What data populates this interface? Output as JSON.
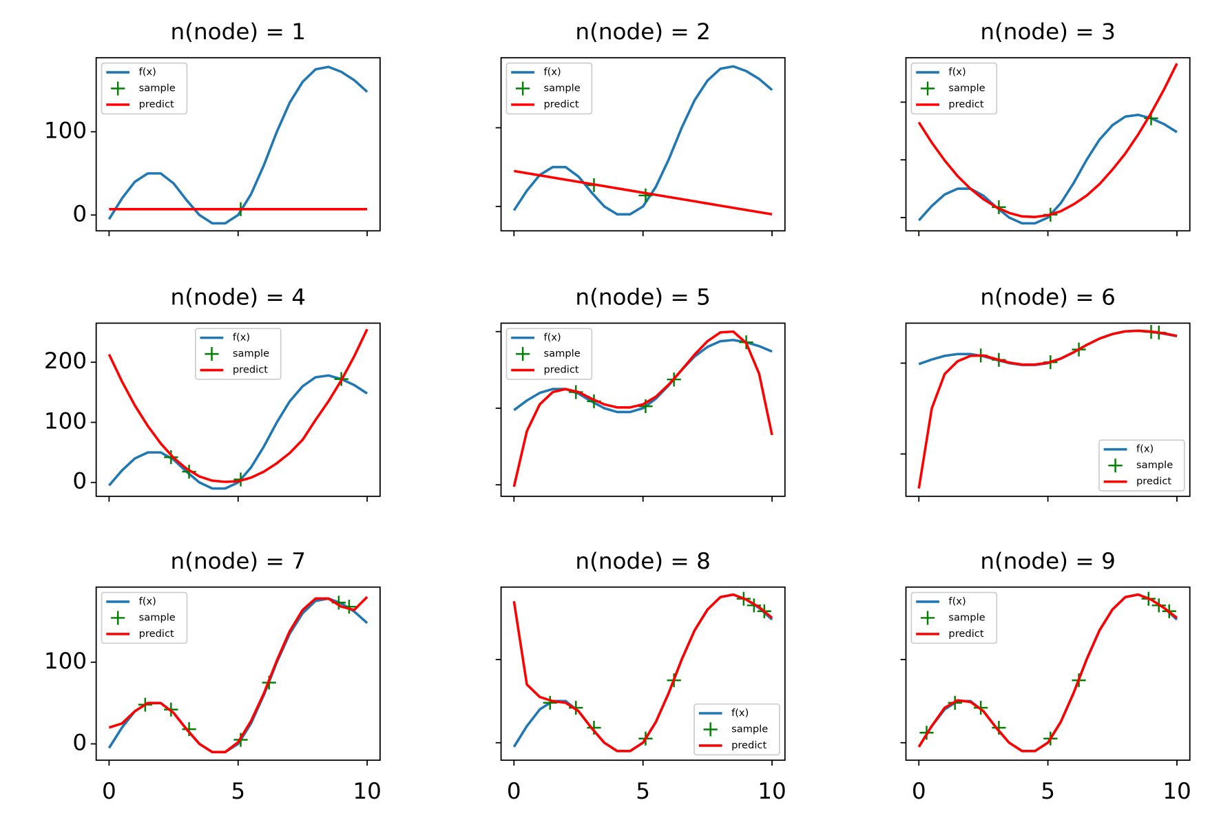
{
  "chart_data": [
    {
      "type": "line",
      "title": "n(node) = 1",
      "x": [
        0,
        0.5,
        1,
        1.5,
        2,
        2.5,
        3,
        3.5,
        4,
        4.5,
        5,
        5.5,
        6,
        6.5,
        7,
        7.5,
        8,
        8.5,
        9,
        9.5,
        10
      ],
      "xlim": [
        -0.5,
        10.5
      ],
      "xticks": [
        0,
        5,
        10
      ],
      "ylim": [
        -19,
        189
      ],
      "yticks": [
        0,
        100
      ],
      "show_xtick_labels": false,
      "show_ytick_labels": true,
      "legend": "upper left",
      "series": [
        {
          "name": "f(x)",
          "color": "#1f77b4",
          "values": [
            -5,
            20,
            40,
            50,
            50,
            38,
            18,
            0,
            -10,
            -10,
            0,
            25,
            60,
            100,
            135,
            160,
            175,
            178,
            172,
            162,
            148
          ]
        },
        {
          "name": "sample",
          "color": "#008000",
          "marker": "+",
          "x": [
            5.1
          ],
          "values": [
            7
          ]
        },
        {
          "name": "predict",
          "color": "#ff0000",
          "values": [
            7,
            7,
            7,
            7,
            7,
            7,
            7,
            7,
            7,
            7,
            7,
            7,
            7,
            7,
            7,
            7,
            7,
            7,
            7,
            7,
            7
          ]
        }
      ]
    },
    {
      "type": "line",
      "title": "n(node) = 2",
      "x": [
        0,
        0.5,
        1,
        1.5,
        2,
        2.5,
        3,
        3.5,
        4,
        4.5,
        5,
        5.5,
        6,
        6.5,
        7,
        7.5,
        8,
        8.5,
        9,
        9.5,
        10
      ],
      "xlim": [
        -0.5,
        10.5
      ],
      "xticks": [
        0,
        5,
        10
      ],
      "ylim": [
        -31,
        189
      ],
      "yticks": [
        0,
        100
      ],
      "show_xtick_labels": false,
      "show_ytick_labels": false,
      "legend": "upper left",
      "series": [
        {
          "name": "f(x)",
          "color": "#1f77b4",
          "values": [
            -5,
            20,
            40,
            50,
            50,
            38,
            18,
            0,
            -10,
            -10,
            0,
            25,
            60,
            100,
            135,
            160,
            175,
            178,
            172,
            162,
            148
          ]
        },
        {
          "name": "sample",
          "color": "#008000",
          "marker": "+",
          "x": [
            3.1,
            5.1
          ],
          "values": [
            27,
            14
          ]
        },
        {
          "name": "predict",
          "color": "#ff0000",
          "values": [
            45,
            42.25,
            39.5,
            36.75,
            34,
            31.25,
            28.5,
            25.75,
            23,
            20.25,
            17.5,
            14.75,
            12,
            9.25,
            6.5,
            3.75,
            1,
            -1.75,
            -4.5,
            -7.25,
            -10
          ]
        }
      ]
    },
    {
      "type": "line",
      "title": "n(node) = 3",
      "x": [
        0,
        0.5,
        1,
        1.5,
        2,
        2.5,
        3,
        3.5,
        4,
        4.5,
        5,
        5.5,
        6,
        6.5,
        7,
        7.5,
        8,
        8.5,
        9,
        9.5,
        10
      ],
      "xlim": [
        -0.5,
        10.5
      ],
      "xticks": [
        0,
        5,
        10
      ],
      "ylim": [
        -23,
        277
      ],
      "yticks": [
        0,
        100,
        200
      ],
      "show_xtick_labels": false,
      "show_ytick_labels": false,
      "legend": "upper left",
      "series": [
        {
          "name": "f(x)",
          "color": "#1f77b4",
          "values": [
            -5,
            20,
            40,
            50,
            50,
            38,
            18,
            0,
            -10,
            -10,
            0,
            25,
            60,
            100,
            135,
            160,
            175,
            178,
            172,
            162,
            148
          ]
        },
        {
          "name": "sample",
          "color": "#008000",
          "marker": "+",
          "x": [
            3.1,
            5.1,
            9
          ],
          "values": [
            18,
            5,
            172
          ]
        },
        {
          "name": "predict",
          "color": "#ff0000",
          "values": [
            165,
            130,
            99,
            72,
            50,
            32,
            18,
            8,
            2,
            1,
            4,
            11,
            23,
            38,
            58,
            83,
            111,
            144,
            181,
            222,
            267
          ]
        }
      ]
    },
    {
      "type": "line",
      "title": "n(node) = 4",
      "x": [
        0,
        0.5,
        1,
        1.5,
        2,
        2.5,
        3,
        3.5,
        4,
        4.5,
        5,
        5.5,
        6,
        6.5,
        7,
        7.5,
        8,
        8.5,
        9,
        9.5,
        10
      ],
      "xlim": [
        -0.5,
        10.5
      ],
      "xticks": [
        0,
        5,
        10
      ],
      "ylim": [
        -23,
        265
      ],
      "yticks": [
        0,
        100,
        200
      ],
      "show_xtick_labels": false,
      "show_ytick_labels": true,
      "legend": "upper center",
      "series": [
        {
          "name": "f(x)",
          "color": "#1f77b4",
          "values": [
            -5,
            20,
            40,
            50,
            50,
            38,
            18,
            0,
            -10,
            -10,
            0,
            25,
            60,
            100,
            135,
            160,
            175,
            178,
            172,
            162,
            148
          ]
        },
        {
          "name": "sample",
          "color": "#008000",
          "marker": "+",
          "x": [
            2.4,
            3.1,
            5.1,
            9
          ],
          "values": [
            42,
            18,
            5,
            172
          ]
        },
        {
          "name": "predict",
          "color": "#ff0000",
          "values": [
            213,
            168,
            128,
            94,
            65,
            41,
            23,
            10,
            3,
            1,
            2,
            8,
            18,
            32,
            49,
            71,
            104,
            135,
            170,
            210,
            255
          ]
        }
      ]
    },
    {
      "type": "line",
      "title": "n(node) = 5",
      "x": [
        0,
        0.5,
        1,
        1.5,
        2,
        2.5,
        3,
        3.5,
        4,
        4.5,
        5,
        5.5,
        6,
        6.5,
        7,
        7.5,
        8,
        8.5,
        9,
        9.5,
        10
      ],
      "xlim": [
        -0.5,
        10.5
      ],
      "xticks": [
        0,
        5,
        10
      ],
      "ylim": [
        -230,
        222
      ],
      "yticks": [
        -200,
        0,
        200
      ],
      "show_xtick_labels": false,
      "show_ytick_labels": false,
      "legend": "upper left",
      "series": [
        {
          "name": "f(x)",
          "color": "#1f77b4",
          "values": [
            -5,
            20,
            40,
            50,
            50,
            38,
            18,
            0,
            -10,
            -10,
            0,
            25,
            60,
            100,
            135,
            160,
            175,
            178,
            172,
            162,
            148
          ]
        },
        {
          "name": "sample",
          "color": "#008000",
          "marker": "+",
          "x": [
            2.4,
            3.1,
            5.1,
            6.2,
            9
          ],
          "values": [
            42,
            18,
            5,
            75,
            172
          ]
        },
        {
          "name": "predict",
          "color": "#ff0000",
          "values": [
            -205,
            -60,
            10,
            42,
            50,
            42,
            25,
            10,
            2,
            2,
            10,
            30,
            62,
            100,
            140,
            175,
            198,
            200,
            170,
            90,
            -70
          ]
        }
      ]
    },
    {
      "type": "line",
      "title": "n(node) = 6",
      "x": [
        0,
        0.5,
        1,
        1.5,
        2,
        2.5,
        3,
        3.5,
        4,
        4.5,
        5,
        5.5,
        6,
        6.5,
        7,
        7.5,
        8,
        8.5,
        9,
        9.5,
        10
      ],
      "xlim": [
        -0.5,
        10.5
      ],
      "xticks": [
        0,
        5,
        10
      ],
      "ylim": [
        -733,
        220
      ],
      "yticks": [
        -500,
        0
      ],
      "show_xtick_labels": false,
      "show_ytick_labels": false,
      "legend": "lower right",
      "series": [
        {
          "name": "f(x)",
          "color": "#1f77b4",
          "values": [
            -5,
            20,
            40,
            50,
            50,
            38,
            18,
            0,
            -10,
            -10,
            0,
            25,
            60,
            100,
            135,
            160,
            175,
            178,
            172,
            162,
            148
          ]
        },
        {
          "name": "sample",
          "color": "#008000",
          "marker": "+",
          "x": [
            2.4,
            3.1,
            5.1,
            6.2,
            9,
            9.3
          ],
          "values": [
            42,
            18,
            5,
            75,
            172,
            168
          ]
        },
        {
          "name": "predict",
          "color": "#ff0000",
          "values": [
            -690,
            -250,
            -60,
            10,
            40,
            42,
            22,
            3,
            -8,
            -8,
            2,
            25,
            60,
            100,
            135,
            160,
            175,
            178,
            174,
            164,
            150
          ]
        }
      ]
    },
    {
      "type": "line",
      "title": "n(node) = 7",
      "x": [
        0,
        0.5,
        1,
        1.5,
        2,
        2.5,
        3,
        3.5,
        4,
        4.5,
        5,
        5.5,
        6,
        6.5,
        7,
        7.5,
        8,
        8.5,
        9,
        9.5,
        10
      ],
      "xlim": [
        -0.5,
        10.5
      ],
      "xticks": [
        0,
        5,
        10
      ],
      "ylim": [
        -20,
        192
      ],
      "yticks": [
        0,
        100
      ],
      "show_xtick_labels": true,
      "show_ytick_labels": true,
      "legend": "upper left",
      "series": [
        {
          "name": "f(x)",
          "color": "#1f77b4",
          "values": [
            -5,
            20,
            40,
            50,
            50,
            38,
            18,
            0,
            -10,
            -10,
            0,
            25,
            60,
            100,
            135,
            160,
            175,
            178,
            172,
            162,
            148
          ]
        },
        {
          "name": "sample",
          "color": "#008000",
          "marker": "+",
          "x": [
            1.4,
            2.4,
            3.1,
            5.1,
            6.2,
            8.9,
            9.3
          ],
          "values": [
            48,
            42,
            18,
            5,
            75,
            173,
            168
          ]
        },
        {
          "name": "predict",
          "color": "#ff0000",
          "values": [
            20,
            25,
            40,
            50,
            50,
            38,
            18,
            0,
            -10,
            -10,
            2,
            28,
            62,
            102,
            138,
            164,
            178,
            178,
            168,
            164,
            180
          ]
        }
      ]
    },
    {
      "type": "line",
      "title": "n(node) = 8",
      "x": [
        0,
        0.5,
        1,
        1.5,
        2,
        2.5,
        3,
        3.5,
        4,
        4.5,
        5,
        5.5,
        6,
        6.5,
        7,
        7.5,
        8,
        8.5,
        9,
        9.5,
        10
      ],
      "xlim": [
        -0.5,
        10.5
      ],
      "xticks": [
        0,
        5,
        10
      ],
      "ylim": [
        -21,
        187
      ],
      "yticks": [
        0,
        100
      ],
      "show_xtick_labels": true,
      "show_ytick_labels": false,
      "legend": "lower right",
      "series": [
        {
          "name": "f(x)",
          "color": "#1f77b4",
          "values": [
            -5,
            20,
            40,
            50,
            50,
            38,
            18,
            0,
            -10,
            -10,
            0,
            25,
            60,
            100,
            135,
            160,
            175,
            178,
            172,
            162,
            148
          ]
        },
        {
          "name": "sample",
          "color": "#008000",
          "marker": "+",
          "x": [
            1.4,
            2.4,
            3.1,
            5.1,
            6.2,
            8.9,
            9.3,
            9.7
          ],
          "values": [
            48,
            42,
            18,
            5,
            75,
            173,
            165,
            158
          ]
        },
        {
          "name": "predict",
          "color": "#ff0000",
          "values": [
            170,
            70,
            55,
            50,
            48,
            38,
            18,
            0,
            -10,
            -10,
            0,
            25,
            60,
            100,
            135,
            160,
            175,
            178,
            172,
            163,
            150
          ]
        }
      ]
    },
    {
      "type": "line",
      "title": "n(node) = 9",
      "x": [
        0,
        0.5,
        1,
        1.5,
        2,
        2.5,
        3,
        3.5,
        4,
        4.5,
        5,
        5.5,
        6,
        6.5,
        7,
        7.5,
        8,
        8.5,
        9,
        9.5,
        10
      ],
      "xlim": [
        -0.5,
        10.5
      ],
      "xticks": [
        0,
        5,
        10
      ],
      "ylim": [
        -21,
        187
      ],
      "yticks": [
        0,
        100
      ],
      "show_xtick_labels": true,
      "show_ytick_labels": false,
      "legend": "upper left",
      "series": [
        {
          "name": "f(x)",
          "color": "#1f77b4",
          "values": [
            -5,
            20,
            40,
            50,
            50,
            38,
            18,
            0,
            -10,
            -10,
            0,
            25,
            60,
            100,
            135,
            160,
            175,
            178,
            172,
            162,
            148
          ]
        },
        {
          "name": "sample",
          "color": "#008000",
          "marker": "+",
          "x": [
            0.3,
            1.4,
            2.4,
            3.1,
            5.1,
            6.2,
            8.9,
            9.3,
            9.7
          ],
          "values": [
            12,
            48,
            42,
            18,
            5,
            75,
            173,
            165,
            158
          ]
        },
        {
          "name": "predict",
          "color": "#ff0000",
          "values": [
            -5,
            20,
            42,
            51,
            49,
            38,
            18,
            0,
            -10,
            -10,
            0,
            25,
            60,
            100,
            135,
            160,
            175,
            178,
            172,
            162,
            150
          ]
        }
      ]
    }
  ]
}
